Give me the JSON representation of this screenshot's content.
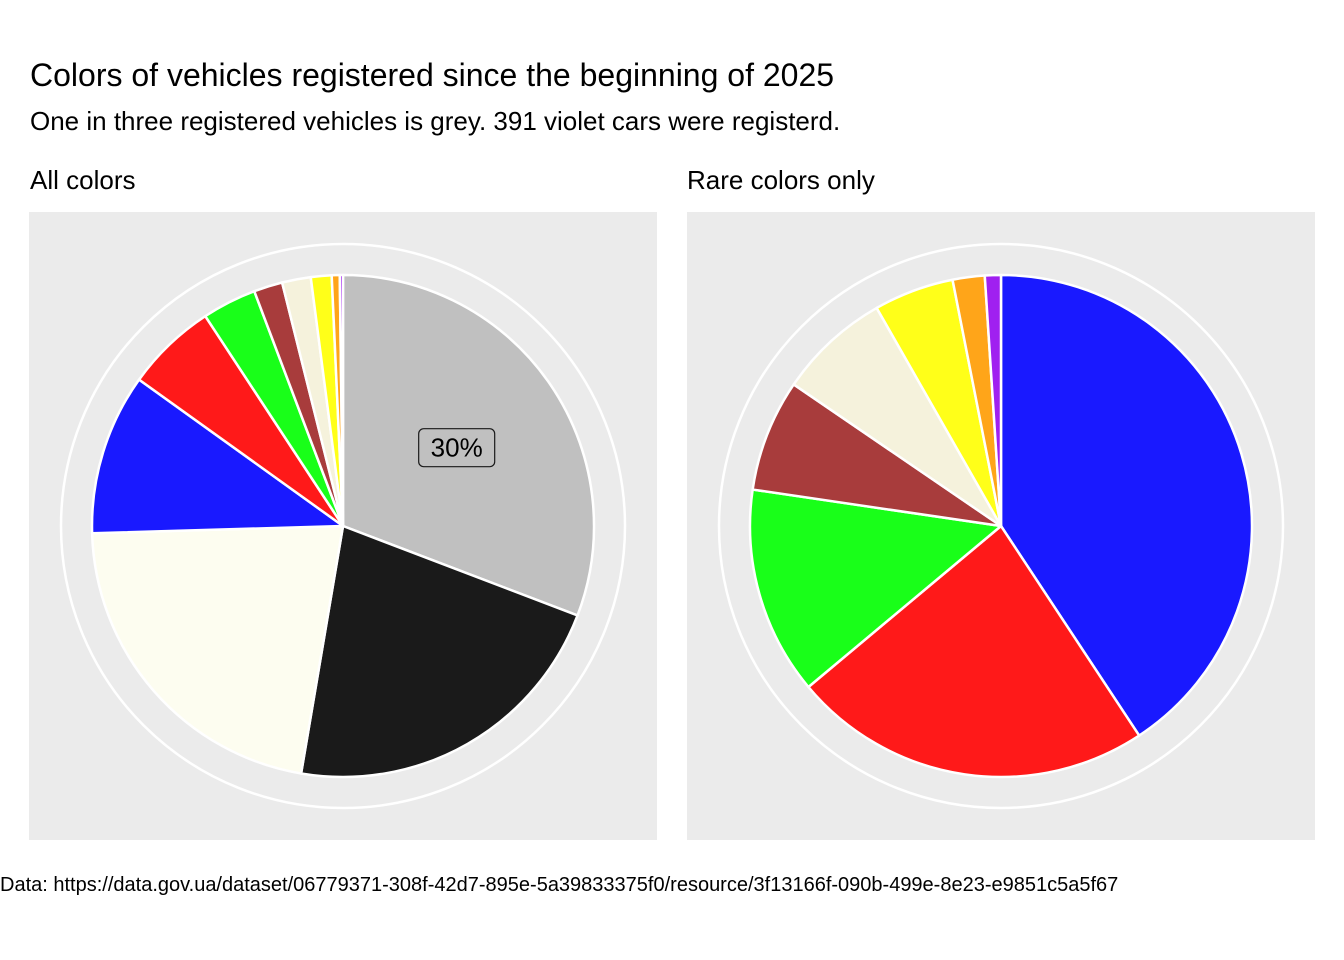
{
  "title": "Colors of vehicles registered since the beginning of 2025",
  "subtitle": "One in three registered vehicles is grey. 391 violet cars were registerd.",
  "caption": "Data: https://data.gov.ua/dataset/06779371-308f-42d7-895e-5a39833375f0/resource/3f13166f-090b-499e-8e23-e9851c5a5f67",
  "chart_data": [
    {
      "type": "pie",
      "panel_title": "All colors",
      "highlight_label": "30%",
      "slices": [
        {
          "color": "#c0c0c0",
          "value": 30.0
        },
        {
          "color": "#1a1a1a",
          "value": 21.3
        },
        {
          "color": "#fdfdf0",
          "value": 21.3
        },
        {
          "color": "#1919ff",
          "value": 10.1
        },
        {
          "color": "#ff1919",
          "value": 5.7
        },
        {
          "color": "#19ff19",
          "value": 3.4
        },
        {
          "color": "#a83c3c",
          "value": 1.8
        },
        {
          "color": "#f5f2dc",
          "value": 1.8
        },
        {
          "color": "#ffff19",
          "value": 1.3
        },
        {
          "color": "#ffa519",
          "value": 0.5
        },
        {
          "color": "#a020f0",
          "value": 0.2
        }
      ]
    },
    {
      "type": "pie",
      "panel_title": "Rare colors only",
      "slices": [
        {
          "color": "#1919ff",
          "value": 39.5
        },
        {
          "color": "#ff1919",
          "value": 22.5
        },
        {
          "color": "#19ff19",
          "value": 13.0
        },
        {
          "color": "#a83c3c",
          "value": 7.0
        },
        {
          "color": "#f5f2dc",
          "value": 7.0
        },
        {
          "color": "#ffff19",
          "value": 5.0
        },
        {
          "color": "#ffa519",
          "value": 2.0
        },
        {
          "color": "#a020f0",
          "value": 1.0
        }
      ]
    }
  ]
}
